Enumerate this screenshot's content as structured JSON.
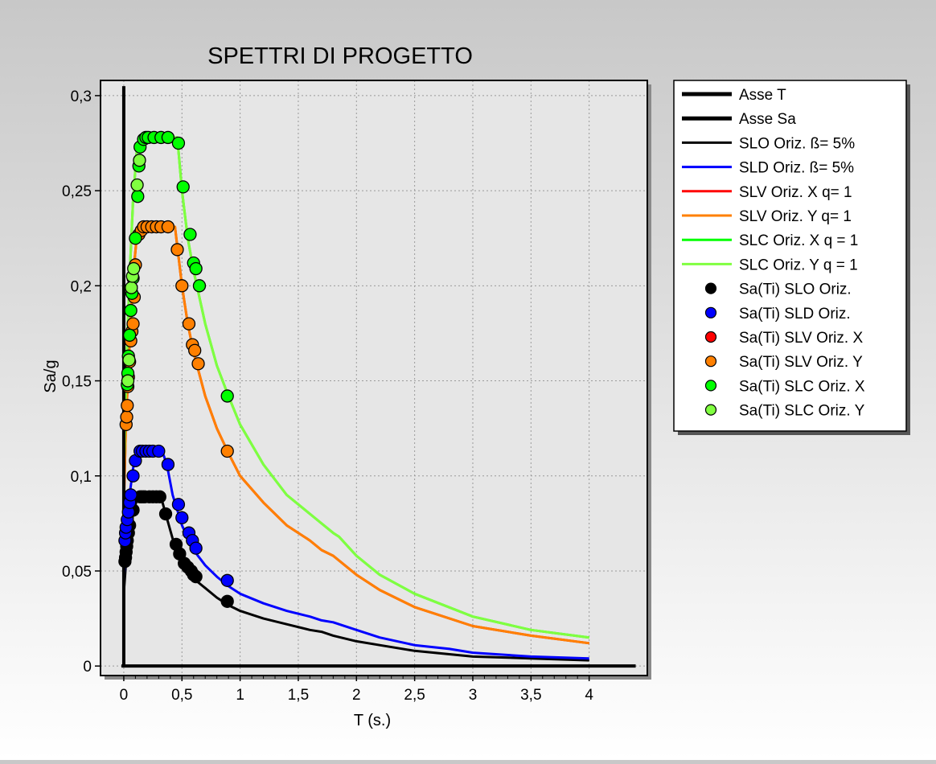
{
  "chart_data": {
    "type": "line",
    "title": "SPETTRI DI PROGETTO",
    "xlabel": "T (s.)",
    "ylabel": "Sa/g",
    "xlim": [
      -0.2,
      4.5
    ],
    "ylim": [
      -0.005,
      0.308
    ],
    "grid": true,
    "legend_position": "right",
    "x_ticks": [
      {
        "v": 0,
        "label": "0"
      },
      {
        "v": 0.5,
        "label": "0,5"
      },
      {
        "v": 1,
        "label": "1"
      },
      {
        "v": 1.5,
        "label": "1,5"
      },
      {
        "v": 2,
        "label": "2"
      },
      {
        "v": 2.5,
        "label": "2,5"
      },
      {
        "v": 3,
        "label": "3"
      },
      {
        "v": 3.5,
        "label": "3,5"
      },
      {
        "v": 4,
        "label": "4"
      }
    ],
    "y_ticks": [
      {
        "v": 0,
        "label": "0"
      },
      {
        "v": 0.05,
        "label": "0,05"
      },
      {
        "v": 0.1,
        "label": "0,1"
      },
      {
        "v": 0.15,
        "label": "0,15"
      },
      {
        "v": 0.2,
        "label": "0,2"
      },
      {
        "v": 0.25,
        "label": "0,25"
      },
      {
        "v": 0.3,
        "label": "0,3"
      }
    ],
    "axis_lines": [
      {
        "name": "Asse T",
        "color": "#000000",
        "x": [
          -0.02,
          4.4
        ],
        "y": [
          0,
          0
        ]
      },
      {
        "name": "Asse Sa",
        "color": "#000000",
        "x": [
          0,
          0
        ],
        "y": [
          0,
          0.305
        ]
      }
    ],
    "series": [
      {
        "name": "SLO Oriz. ß= 5%",
        "color": "#000000",
        "x": [
          0,
          0.02,
          0.05,
          0.08,
          0.11,
          0.13,
          0.15,
          0.32,
          0.36,
          0.42,
          0.5,
          0.6,
          0.7,
          0.8,
          0.9,
          1.0,
          1.2,
          1.4,
          1.6,
          1.7,
          1.8,
          2.0,
          2.2,
          2.5,
          3.0,
          3.5,
          4.0
        ],
        "y": [
          0.038,
          0.055,
          0.068,
          0.08,
          0.087,
          0.089,
          0.089,
          0.089,
          0.08,
          0.067,
          0.055,
          0.046,
          0.041,
          0.036,
          0.032,
          0.029,
          0.025,
          0.022,
          0.019,
          0.018,
          0.016,
          0.013,
          0.011,
          0.008,
          0.005,
          0.004,
          0.003
        ]
      },
      {
        "name": "SLD Oriz. ß= 5%",
        "color": "#0000ff",
        "x": [
          0,
          0.02,
          0.05,
          0.08,
          0.11,
          0.14,
          0.33,
          0.37,
          0.42,
          0.5,
          0.6,
          0.7,
          0.8,
          0.9,
          1.0,
          1.2,
          1.4,
          1.6,
          1.7,
          1.8,
          2.0,
          2.2,
          2.5,
          2.8,
          3.0,
          3.5,
          4.0
        ],
        "y": [
          0.043,
          0.07,
          0.09,
          0.104,
          0.112,
          0.113,
          0.113,
          0.106,
          0.09,
          0.074,
          0.061,
          0.053,
          0.047,
          0.042,
          0.038,
          0.033,
          0.029,
          0.026,
          0.024,
          0.023,
          0.019,
          0.015,
          0.011,
          0.009,
          0.007,
          0.005,
          0.004
        ]
      },
      {
        "name": "SLV Oriz. X q= 1",
        "color": "#ff0000",
        "x": [
          0,
          0.02,
          0.05,
          0.08,
          0.11,
          0.14,
          0.44,
          0.5,
          0.55,
          0.6,
          0.7,
          0.8,
          0.9,
          1.0,
          1.2,
          1.4,
          1.6,
          1.7,
          1.8,
          2.0,
          2.2,
          2.5,
          3.0,
          3.5,
          4.0
        ],
        "y": [
          0.083,
          0.13,
          0.17,
          0.205,
          0.225,
          0.231,
          0.231,
          0.2,
          0.18,
          0.165,
          0.142,
          0.125,
          0.112,
          0.1,
          0.086,
          0.074,
          0.066,
          0.061,
          0.058,
          0.048,
          0.04,
          0.031,
          0.021,
          0.016,
          0.012
        ]
      },
      {
        "name": "SLV Oriz. Y q= 1",
        "color": "#ff8000",
        "x": [
          0,
          0.02,
          0.05,
          0.08,
          0.11,
          0.14,
          0.44,
          0.5,
          0.55,
          0.6,
          0.7,
          0.8,
          0.9,
          1.0,
          1.2,
          1.4,
          1.6,
          1.7,
          1.8,
          2.0,
          2.2,
          2.5,
          3.0,
          3.5,
          4.0
        ],
        "y": [
          0.083,
          0.13,
          0.17,
          0.205,
          0.225,
          0.231,
          0.231,
          0.2,
          0.18,
          0.165,
          0.142,
          0.125,
          0.112,
          0.1,
          0.086,
          0.074,
          0.066,
          0.061,
          0.058,
          0.048,
          0.04,
          0.031,
          0.021,
          0.016,
          0.012
        ]
      },
      {
        "name": "SLC Oriz. X q = 1",
        "color": "#00ff00",
        "x": [
          0,
          0.02,
          0.05,
          0.08,
          0.11,
          0.14,
          0.46,
          0.5,
          0.55,
          0.6,
          0.7,
          0.8,
          0.9,
          1.0,
          1.2,
          1.4,
          1.6,
          1.7,
          1.8,
          1.85,
          2.0,
          2.2,
          2.5,
          3.0,
          3.5,
          4.0
        ],
        "y": [
          0.098,
          0.155,
          0.205,
          0.245,
          0.27,
          0.278,
          0.278,
          0.25,
          0.225,
          0.208,
          0.18,
          0.158,
          0.142,
          0.127,
          0.106,
          0.09,
          0.08,
          0.075,
          0.07,
          0.068,
          0.058,
          0.048,
          0.038,
          0.026,
          0.019,
          0.015
        ]
      },
      {
        "name": "SLC Oriz. Y q = 1",
        "color": "#80ff40",
        "x": [
          0,
          0.02,
          0.05,
          0.08,
          0.11,
          0.14,
          0.46,
          0.5,
          0.55,
          0.6,
          0.7,
          0.8,
          0.9,
          1.0,
          1.2,
          1.4,
          1.6,
          1.7,
          1.8,
          1.85,
          2.0,
          2.2,
          2.5,
          3.0,
          3.5,
          4.0
        ],
        "y": [
          0.098,
          0.155,
          0.205,
          0.245,
          0.27,
          0.278,
          0.278,
          0.25,
          0.225,
          0.208,
          0.18,
          0.158,
          0.142,
          0.127,
          0.106,
          0.09,
          0.08,
          0.075,
          0.07,
          0.068,
          0.058,
          0.048,
          0.038,
          0.026,
          0.019,
          0.015
        ]
      }
    ],
    "points": [
      {
        "name": "Sa(Ti) SLO Oriz.",
        "color": "#000000",
        "x": [
          0.01,
          0.015,
          0.02,
          0.025,
          0.03,
          0.04,
          0.05,
          0.08,
          0.14,
          0.16,
          0.18,
          0.22,
          0.25,
          0.28,
          0.31,
          0.36,
          0.45,
          0.48,
          0.52,
          0.55,
          0.58,
          0.6,
          0.62,
          0.89
        ],
        "y": [
          0.055,
          0.057,
          0.06,
          0.063,
          0.066,
          0.07,
          0.074,
          0.082,
          0.089,
          0.089,
          0.089,
          0.089,
          0.089,
          0.089,
          0.089,
          0.08,
          0.064,
          0.059,
          0.054,
          0.052,
          0.05,
          0.048,
          0.047,
          0.034
        ]
      },
      {
        "name": "Sa(Ti) SLD Oriz.",
        "color": "#0000ff",
        "x": [
          0.01,
          0.015,
          0.02,
          0.03,
          0.04,
          0.05,
          0.06,
          0.08,
          0.1,
          0.14,
          0.16,
          0.19,
          0.22,
          0.25,
          0.3,
          0.38,
          0.47,
          0.5,
          0.56,
          0.59,
          0.62,
          0.89
        ],
        "y": [
          0.066,
          0.07,
          0.073,
          0.077,
          0.081,
          0.086,
          0.09,
          0.1,
          0.108,
          0.113,
          0.113,
          0.113,
          0.113,
          0.113,
          0.113,
          0.106,
          0.085,
          0.078,
          0.07,
          0.066,
          0.062,
          0.045
        ]
      },
      {
        "name": "Sa(Ti) SLV Oriz. X",
        "color": "#ff0000",
        "x": [],
        "y": []
      },
      {
        "name": "Sa(Ti) SLV Oriz. Y",
        "color": "#ff8000",
        "x": [
          0.02,
          0.025,
          0.03,
          0.035,
          0.04,
          0.05,
          0.06,
          0.07,
          0.08,
          0.09,
          0.1,
          0.13,
          0.15,
          0.17,
          0.2,
          0.24,
          0.28,
          0.32,
          0.38,
          0.46,
          0.5,
          0.56,
          0.59,
          0.61,
          0.64,
          0.89
        ],
        "y": [
          0.127,
          0.131,
          0.137,
          0.147,
          0.152,
          0.16,
          0.171,
          0.176,
          0.18,
          0.194,
          0.211,
          0.227,
          0.229,
          0.231,
          0.231,
          0.231,
          0.231,
          0.231,
          0.231,
          0.219,
          0.2,
          0.18,
          0.169,
          0.166,
          0.159,
          0.113
        ]
      },
      {
        "name": "Sa(Ti) SLC Oriz. X",
        "color": "#00ff00",
        "x": [
          0.03,
          0.035,
          0.04,
          0.05,
          0.06,
          0.07,
          0.08,
          0.1,
          0.12,
          0.13,
          0.14,
          0.17,
          0.19,
          0.21,
          0.26,
          0.32,
          0.38,
          0.47,
          0.51,
          0.57,
          0.6,
          0.62,
          0.65,
          0.89
        ],
        "y": [
          0.148,
          0.154,
          0.163,
          0.174,
          0.187,
          0.196,
          0.204,
          0.225,
          0.247,
          0.263,
          0.273,
          0.277,
          0.278,
          0.278,
          0.278,
          0.278,
          0.278,
          0.275,
          0.252,
          0.227,
          0.212,
          0.209,
          0.2,
          0.142
        ]
      },
      {
        "name": "Sa(Ti) SLC Oriz. Y",
        "color": "#80ff40",
        "x": [
          0.035,
          0.045,
          0.065,
          0.075,
          0.085,
          0.115,
          0.135
        ],
        "y": [
          0.15,
          0.161,
          0.199,
          0.205,
          0.209,
          0.253,
          0.266
        ]
      }
    ]
  }
}
